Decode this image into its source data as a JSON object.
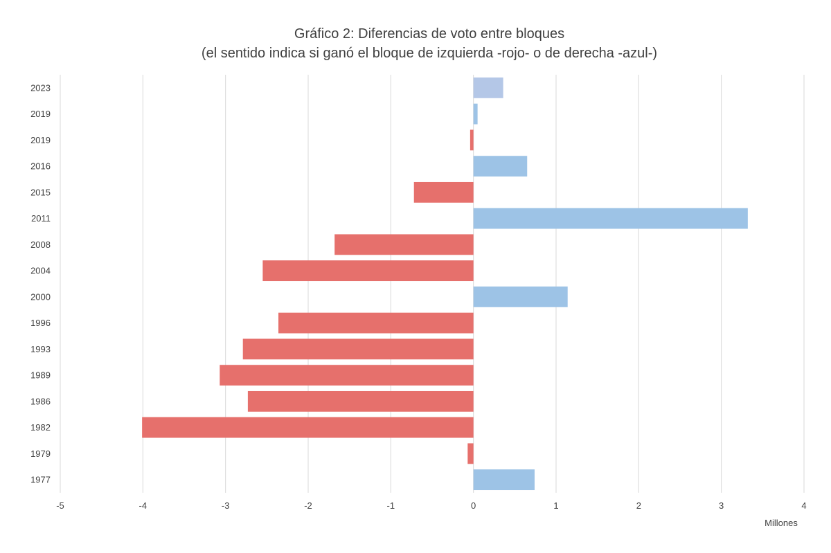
{
  "chart_data": {
    "type": "bar",
    "orientation": "horizontal",
    "title": "Gráfico 2: Diferencias de voto entre bloques",
    "subtitle": "(el sentido indica si ganó el bloque de izquierda -rojo- o de derecha -azul-)",
    "xlabel": "Millones",
    "ylabel": "",
    "xlim": [
      -5,
      4
    ],
    "xticks": [
      "-5",
      "-4",
      "-3",
      "-2",
      "-1",
      "0",
      "1",
      "2",
      "3",
      "4"
    ],
    "grid": "vertical",
    "legend": "none",
    "categories": [
      "2023",
      "2019",
      "2019",
      "2016",
      "2015",
      "2011",
      "2008",
      "2004",
      "2000",
      "1996",
      "1993",
      "1989",
      "1986",
      "1982",
      "1979",
      "1977"
    ],
    "values": [
      0.36,
      0.05,
      -0.04,
      0.65,
      -0.72,
      3.32,
      -1.68,
      -2.55,
      1.14,
      -2.36,
      -2.79,
      -3.07,
      -2.73,
      -4.01,
      -0.07,
      0.74
    ],
    "colors": {
      "left_bloc": "#e6706c",
      "right_bloc": "#9dc3e6",
      "right_bloc_2023": "#b4c7e7",
      "grid": "#d9d9d9",
      "text": "#404040",
      "title": "#404040"
    }
  }
}
